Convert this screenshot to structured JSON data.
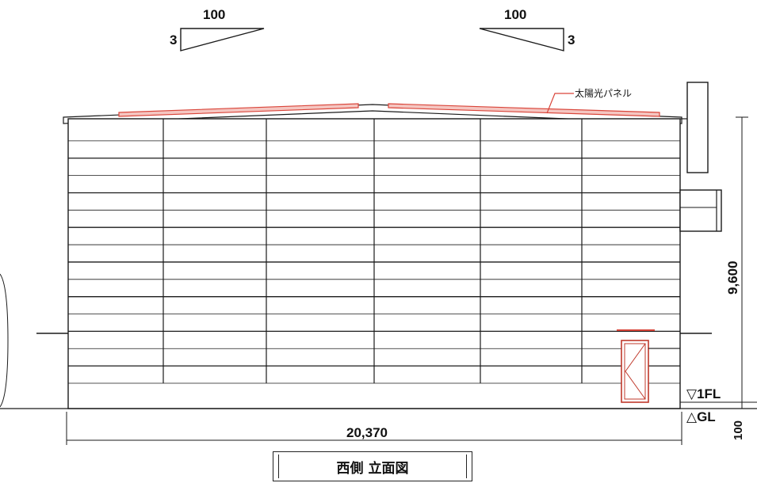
{
  "slope_marks": [
    {
      "run": "100",
      "rise": "3"
    },
    {
      "run": "100",
      "rise": "3"
    }
  ],
  "annotations": {
    "solar_panel": "太陽光パネル"
  },
  "dimensions": {
    "height": "9,600",
    "width": "20,370",
    "floor_offset": "100"
  },
  "levels": {
    "first_floor": "▽1FL",
    "ground": "△GL"
  },
  "title": "西側 立面図",
  "colors": {
    "line": "#1a1a1a",
    "panel": "#d9453a",
    "door": "#c0392b"
  }
}
